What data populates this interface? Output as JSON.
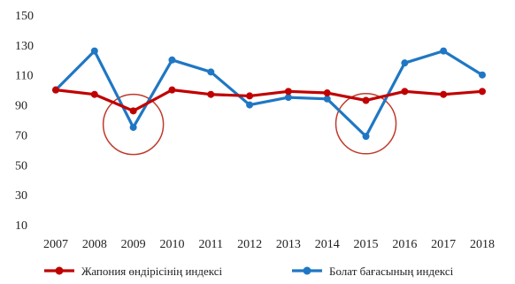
{
  "chart_data": {
    "type": "line",
    "title": "",
    "xlabel": "",
    "ylabel": "",
    "ylim": [
      10,
      150
    ],
    "yticks": [
      10,
      30,
      50,
      70,
      90,
      110,
      130,
      150
    ],
    "categories": [
      "2007",
      "2008",
      "2009",
      "2010",
      "2011",
      "2012",
      "2013",
      "2014",
      "2015",
      "2016",
      "2017",
      "2018"
    ],
    "grid": false,
    "legend": "bottom",
    "series": [
      {
        "name": "Жапония өндірісінің индексі",
        "color": "#c00000",
        "values": [
          100,
          97,
          86,
          100,
          97,
          96,
          99,
          98,
          93,
          99,
          97,
          99
        ]
      },
      {
        "name": "Болат бағасының индексі",
        "color": "#1f77c4",
        "values": [
          100,
          126,
          75,
          120,
          112,
          90,
          95,
          94,
          69,
          118,
          126,
          110
        ]
      }
    ],
    "annotations": [
      {
        "type": "circle",
        "category": "2009",
        "color": "#c0392b"
      },
      {
        "type": "circle",
        "category": "2015",
        "color": "#c0392b"
      }
    ]
  }
}
